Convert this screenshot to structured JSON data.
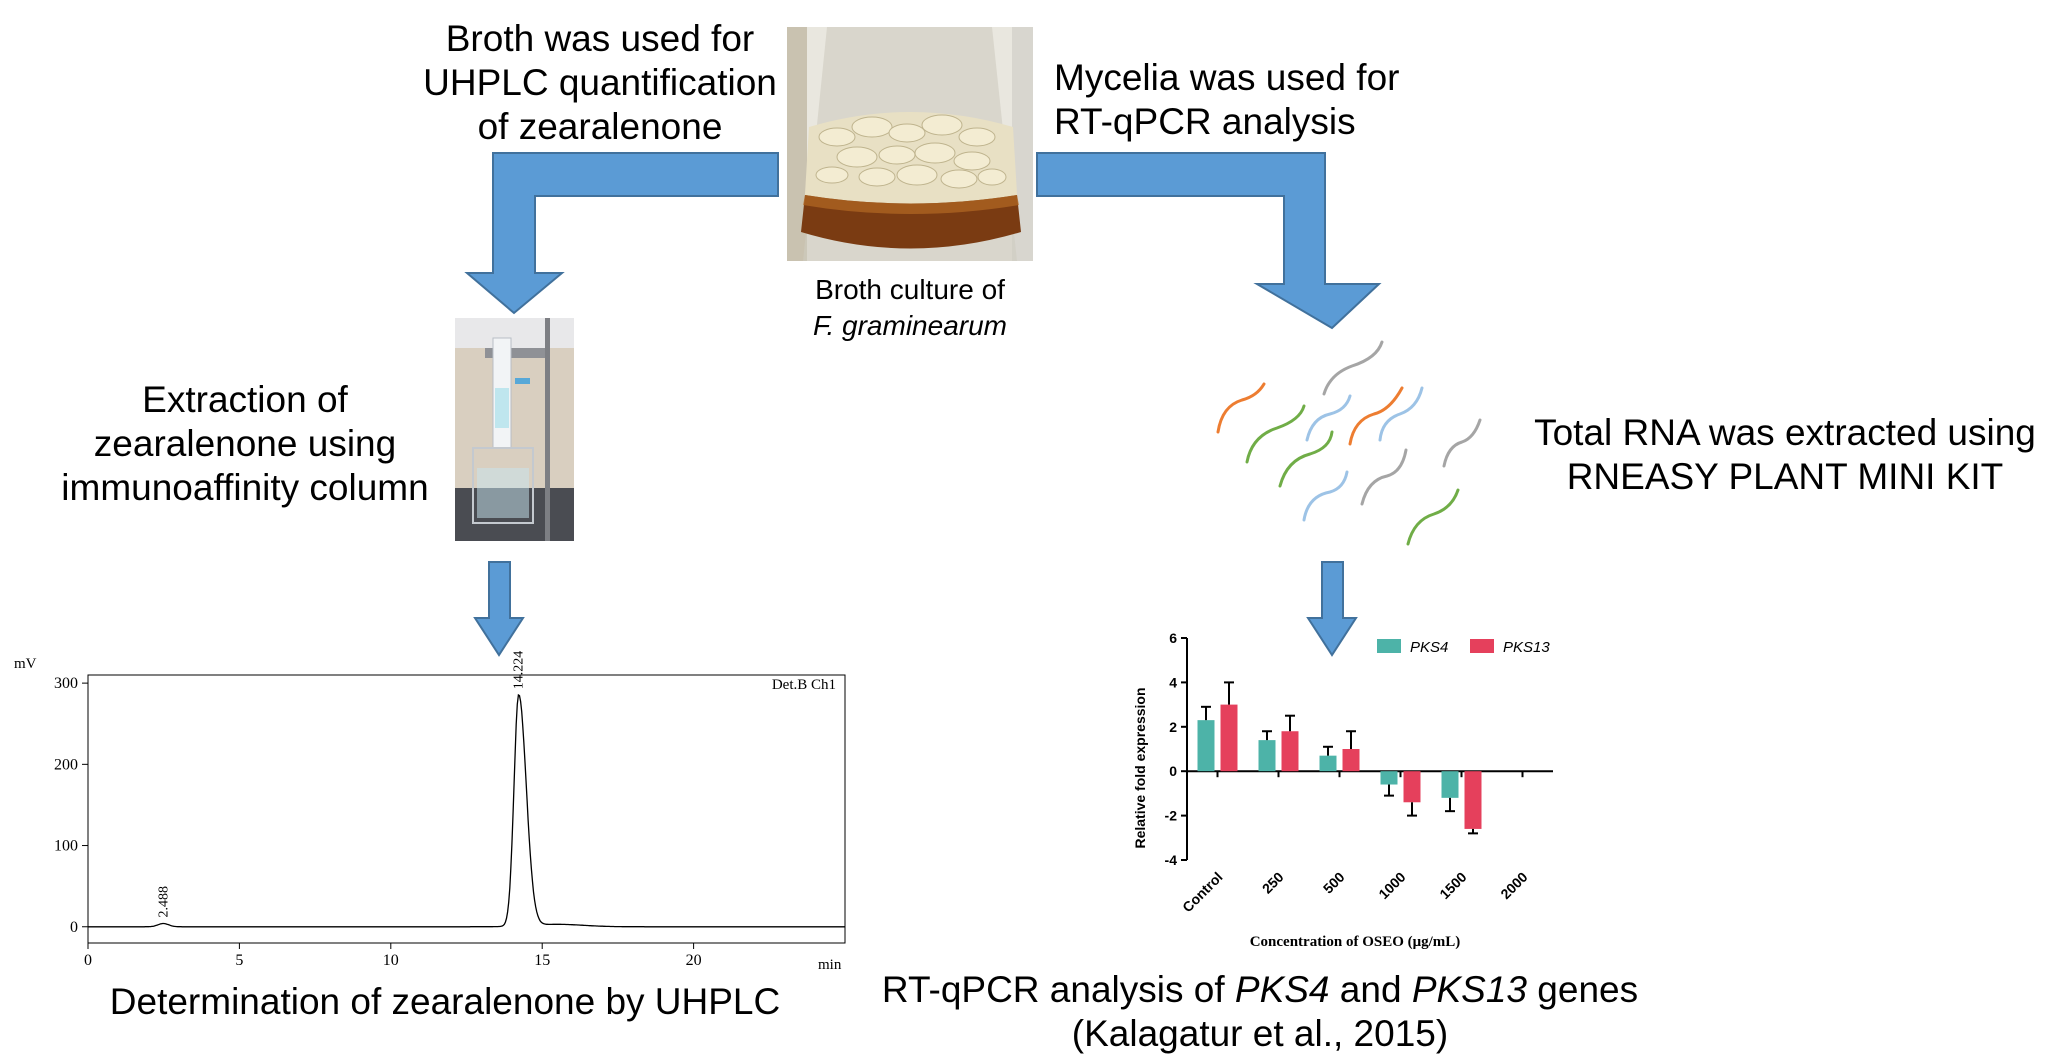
{
  "labels": {
    "broth_used": [
      "Broth was used for",
      "UHPLC quantification",
      "of zearalenone"
    ],
    "mycelia_used": [
      "Mycelia was used for",
      "RT-qPCR analysis"
    ],
    "broth_culture_line1": "Broth culture of",
    "broth_culture_line2": "F. graminearum",
    "extraction": [
      "Extraction of",
      "zearalenone using",
      "immunoaffinity column"
    ],
    "rna": [
      "Total RNA was extracted using",
      "RNEASY PLANT MINI KIT"
    ],
    "determination": "Determination of zearalenone by UHPLC",
    "rtqpcr_caption_pre": "RT-qPCR analysis of ",
    "rtqpcr_caption_g1": "PKS4",
    "rtqpcr_caption_mid": " and ",
    "rtqpcr_caption_g2": "PKS13",
    "rtqpcr_caption_post": " genes",
    "rtqpcr_citation": "(Kalagatur et al., 2015)"
  },
  "colors": {
    "arrow": "#5b9bd5",
    "arrow_stroke": "#41719c",
    "pks4": "#4db3a8",
    "pks13": "#e5405c",
    "rna_orange": "#ed7d31",
    "rna_gray": "#a5a5a5",
    "rna_green": "#70ad47",
    "rna_blue": "#9dc3e6"
  },
  "chart_data": [
    {
      "type": "line",
      "title": "",
      "xlabel": "min",
      "ylabel": "mV",
      "xlim": [
        0,
        25
      ],
      "ylim": [
        -20,
        310
      ],
      "x_ticks": [
        0,
        5,
        10,
        15,
        20
      ],
      "y_ticks": [
        0,
        100,
        200,
        300
      ],
      "legend": "Det.B Ch1",
      "peaks": [
        {
          "retention_time": 2.488,
          "height": 4,
          "label": "2.488"
        },
        {
          "retention_time": 14.224,
          "height": 285,
          "label": "14.224"
        }
      ],
      "grid": false
    },
    {
      "type": "bar",
      "xlabel": "Concentration of OSEO (μg/mL)",
      "ylabel": "Relative fold expression",
      "categories": [
        "Control",
        "250",
        "500",
        "1000",
        "1500",
        "2000"
      ],
      "ylim": [
        -4,
        6
      ],
      "y_ticks": [
        -4,
        -2,
        0,
        2,
        4,
        6
      ],
      "legend_position": "top",
      "series": [
        {
          "name": "PKS4",
          "values": [
            2.3,
            1.4,
            0.7,
            -0.6,
            -1.2,
            0
          ],
          "errors": [
            0.6,
            0.4,
            0.4,
            0.5,
            0.6,
            0
          ]
        },
        {
          "name": "PKS13",
          "values": [
            3.0,
            1.8,
            1.0,
            -1.4,
            -2.6,
            0
          ],
          "errors": [
            1.0,
            0.7,
            0.8,
            0.6,
            0.2,
            0
          ]
        }
      ],
      "grid": false
    }
  ]
}
